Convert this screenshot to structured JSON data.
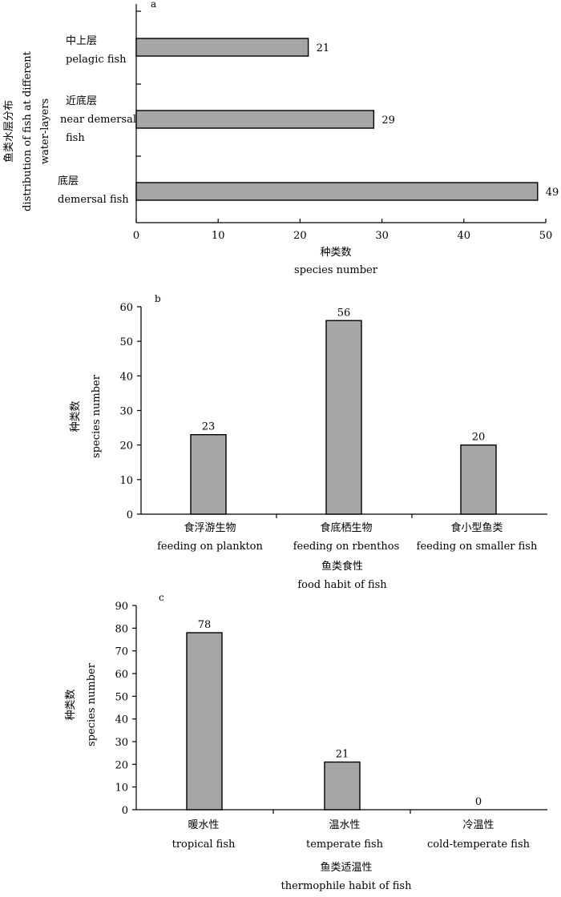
{
  "colors": {
    "bar": "#a6a6a6",
    "bar_edge": "#000000",
    "axis": "#000000"
  },
  "chart_data": [
    {
      "type": "bar",
      "orientation": "horizontal",
      "panel_label": "a",
      "categories": [
        {
          "zh": "中上层",
          "en_lines": [
            "pelagic fish"
          ]
        },
        {
          "zh": "近底层",
          "en_lines": [
            "near demersal",
            "fish"
          ]
        },
        {
          "zh": "底层",
          "en_lines": [
            "demersal fish"
          ]
        }
      ],
      "values": [
        21,
        29,
        49
      ],
      "xlim": [
        0,
        50
      ],
      "x_ticks": [
        0,
        10,
        20,
        30,
        40,
        50
      ],
      "xlabel_zh": "种类数",
      "xlabel_en": "species number",
      "ylabel_zh": "鱼类水层分布",
      "ylabel_en_lines": [
        "distribution of fish at different",
        "water-layers"
      ],
      "grid": false
    },
    {
      "type": "bar",
      "orientation": "vertical",
      "panel_label": "b",
      "categories": [
        {
          "zh": "食浮游生物",
          "en": "feeding on plankton"
        },
        {
          "zh": "食底栖生物",
          "en": "feeding on rbenthos"
        },
        {
          "zh": "食小型鱼类",
          "en": "feeding on smaller fish"
        }
      ],
      "values": [
        23,
        56,
        20
      ],
      "ylim": [
        0,
        60
      ],
      "y_ticks": [
        0,
        10,
        20,
        30,
        40,
        50,
        60
      ],
      "xlabel_zh": "鱼类食性",
      "xlabel_en": "food habit of fish",
      "ylabel_zh": "种类数",
      "ylabel_en": "species number",
      "grid": false
    },
    {
      "type": "bar",
      "orientation": "vertical",
      "panel_label": "c",
      "categories": [
        {
          "zh": "暖水性",
          "en": "tropical fish"
        },
        {
          "zh": "温水性",
          "en": "temperate fish"
        },
        {
          "zh": "冷温性",
          "en": "cold-temperate fish"
        }
      ],
      "values": [
        78,
        21,
        0
      ],
      "ylim": [
        0,
        90
      ],
      "y_ticks": [
        0,
        10,
        20,
        30,
        40,
        50,
        60,
        70,
        80,
        90
      ],
      "xlabel_zh": "鱼类适温性",
      "xlabel_en": "thermophile habit of fish",
      "ylabel_zh": "种类数",
      "ylabel_en": "species number",
      "grid": false
    }
  ]
}
